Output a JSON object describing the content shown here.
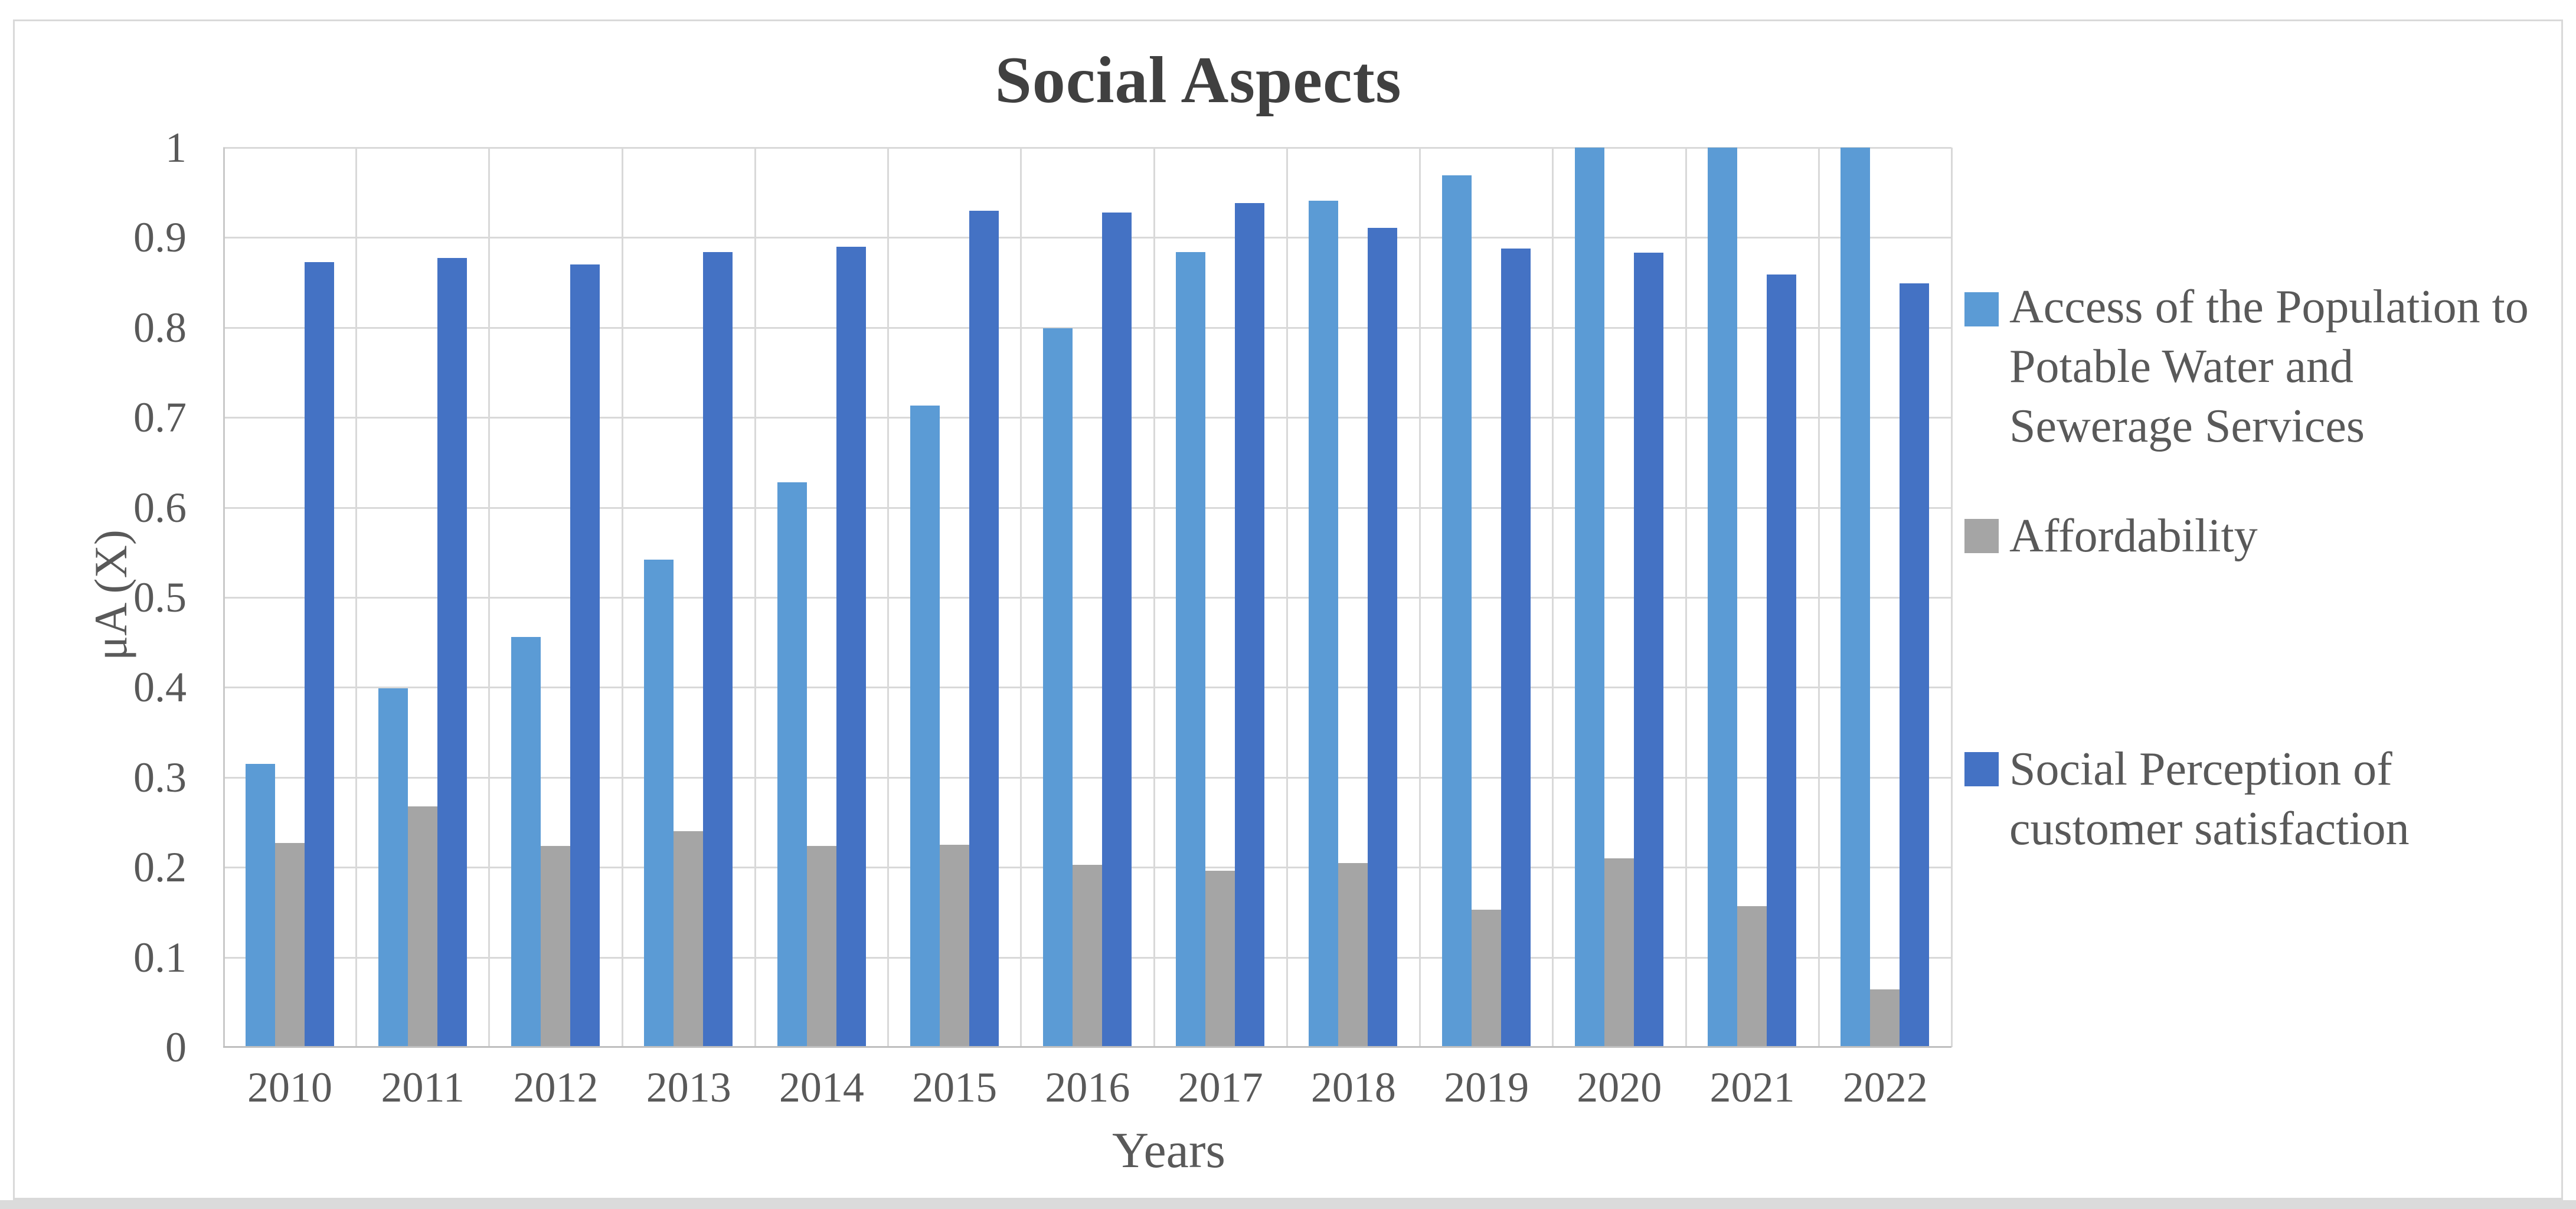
{
  "page": {
    "background_color": "#FFFFFF",
    "bottom_strip_color": "#DBDBDB",
    "frame_border_color": "#D9D9D9"
  },
  "chart_data": {
    "type": "bar",
    "title": "Social Aspects",
    "xlabel": "Years",
    "ylabel": "μA (X)",
    "ylim": [
      0,
      1
    ],
    "ytick_step": 0.1,
    "yticks": [
      "0",
      "0.1",
      "0.2",
      "0.3",
      "0.4",
      "0.5",
      "0.6",
      "0.7",
      "0.8",
      "0.9",
      "1"
    ],
    "categories": [
      "2010",
      "2011",
      "2012",
      "2013",
      "2014",
      "2015",
      "2016",
      "2017",
      "2018",
      "2019",
      "2020",
      "2021",
      "2022"
    ],
    "grid": true,
    "legend_position": "right",
    "series": [
      {
        "name": "Access of the Population to Potable Water and Sewerage Services",
        "legend_lines": [
          "Access of the Population to",
          "Potable Water and",
          "Sewerage Services"
        ],
        "color": "#5B9BD5",
        "values": [
          0.315,
          0.399,
          0.456,
          0.542,
          0.628,
          0.713,
          0.799,
          0.884,
          0.941,
          0.969,
          1.0,
          1.0,
          1.0
        ]
      },
      {
        "name": "Affordability",
        "legend_lines": [
          "Affordability"
        ],
        "color": "#A5A5A5",
        "values": [
          0.227,
          0.268,
          0.224,
          0.24,
          0.224,
          0.225,
          0.203,
          0.196,
          0.205,
          0.153,
          0.21,
          0.157,
          0.064
        ]
      },
      {
        "name": "Social Perception of customer satisfaction",
        "legend_lines": [
          "Social Perception of",
          "customer satisfaction"
        ],
        "color": "#4472C4",
        "values": [
          0.873,
          0.877,
          0.87,
          0.884,
          0.89,
          0.93,
          0.928,
          0.938,
          0.911,
          0.888,
          0.883,
          0.859,
          0.849
        ]
      }
    ],
    "style": {
      "grid_color": "#D9D9D9",
      "x_axis_color": "#BFBFBF",
      "y_axis_color": "#C9C9C9",
      "title_color": "#404040",
      "label_color": "#595959"
    }
  }
}
